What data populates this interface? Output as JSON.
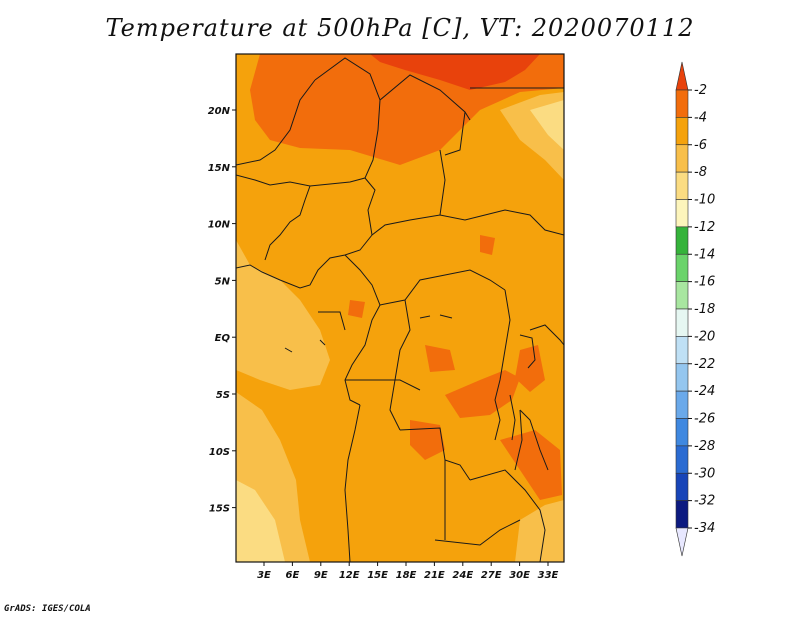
{
  "title": "Temperature at 500hPa [C], VT: 2020070112",
  "credit": "GrADS: IGES/COLA",
  "axes": {
    "lon_ticks": [
      "3E",
      "6E",
      "9E",
      "12E",
      "15E",
      "18E",
      "21E",
      "24E",
      "27E",
      "30E",
      "33E"
    ],
    "lat_ticks": [
      "20N",
      "15N",
      "10N",
      "5N",
      "EQ",
      "5S",
      "10S",
      "15S"
    ]
  },
  "colorbar": {
    "levels": [
      "-2",
      "-4",
      "-6",
      "-8",
      "-10",
      "-12",
      "-14",
      "-16",
      "-18",
      "-20",
      "-22",
      "-24",
      "-26",
      "-28",
      "-30",
      "-32",
      "-34"
    ],
    "colors": [
      "#e8420c",
      "#f26d0c",
      "#f5a20c",
      "#f8bf4a",
      "#fbdc82",
      "#fdf5bc",
      "#35b33a",
      "#6ad36a",
      "#a8e6a0",
      "#e6f7f2",
      "#bfe0f5",
      "#94c6ef",
      "#6aa9ea",
      "#3f88e0",
      "#2a6bd2",
      "#1845b8",
      "#0c1a80",
      "#e8e8ff"
    ]
  },
  "field_colors": {
    "warmest": "#e8420c",
    "warm": "#f26d0c",
    "base": "#f5a20c",
    "cool": "#f8bf4a",
    "coolest": "#fbdc82"
  }
}
